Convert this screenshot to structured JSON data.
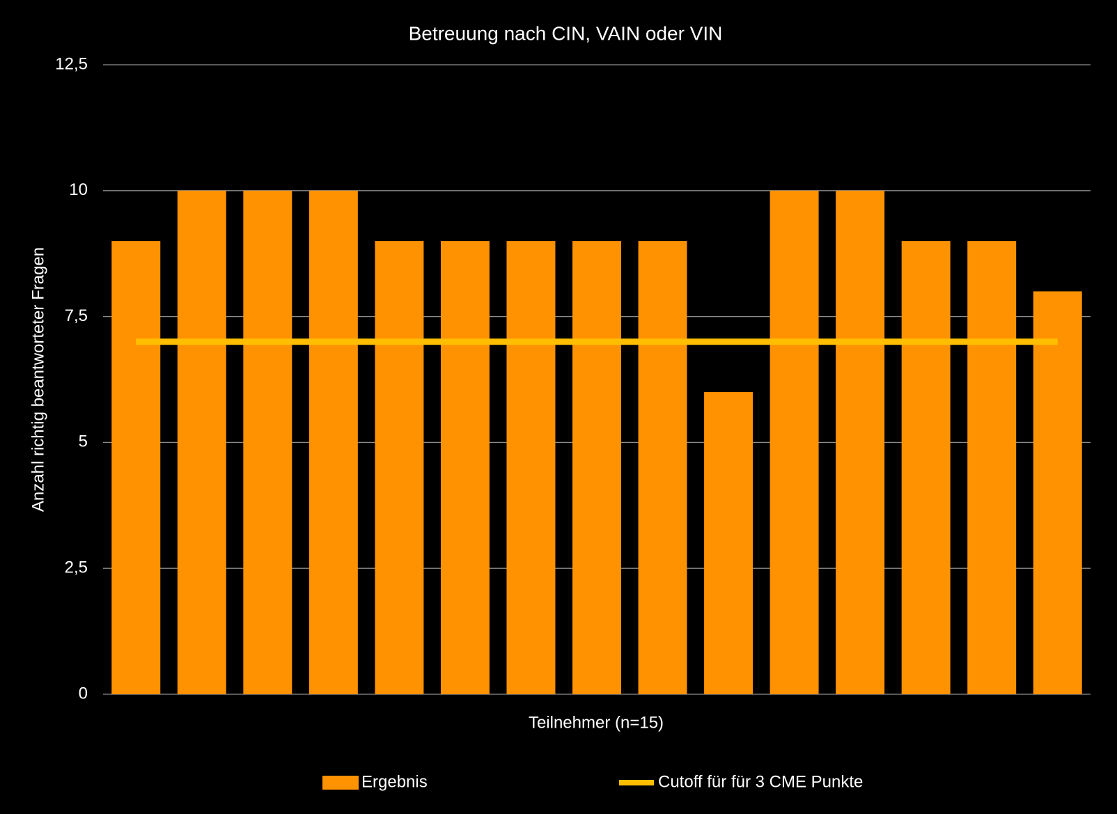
{
  "chart_data": {
    "type": "bar",
    "title": "Betreuung nach CIN, VAIN oder VIN",
    "x_label": "Teilnehmer (n=15)",
    "y_label": "Anzahl richtig beantworteter Fragen",
    "categories": [
      null,
      null,
      null,
      null,
      null,
      null,
      null,
      null,
      null,
      null,
      null,
      null,
      null,
      null,
      null
    ],
    "series": [
      {
        "name": "Ergebnis",
        "type": "bar",
        "color": "#ff9200",
        "values": [
          9,
          10,
          10,
          10,
          9,
          9,
          9,
          9,
          9,
          6,
          10,
          10,
          9,
          9,
          8
        ]
      },
      {
        "name": "Cutoff für für 3 CME Punkte",
        "type": "line",
        "color": "#ffbf00",
        "values": [
          7,
          7,
          7,
          7,
          7,
          7,
          7,
          7,
          7,
          7,
          7,
          7,
          7,
          7,
          7
        ]
      }
    ],
    "ylim": [
      0,
      12.5
    ],
    "yticks": [
      0,
      {
        "value": 2.5,
        "label": "2,5"
      },
      5,
      {
        "value": 7.5,
        "label": "7,5"
      },
      10,
      {
        "value": 12.5,
        "label": "12,5"
      }
    ],
    "grid": true,
    "legend": "bottom"
  }
}
